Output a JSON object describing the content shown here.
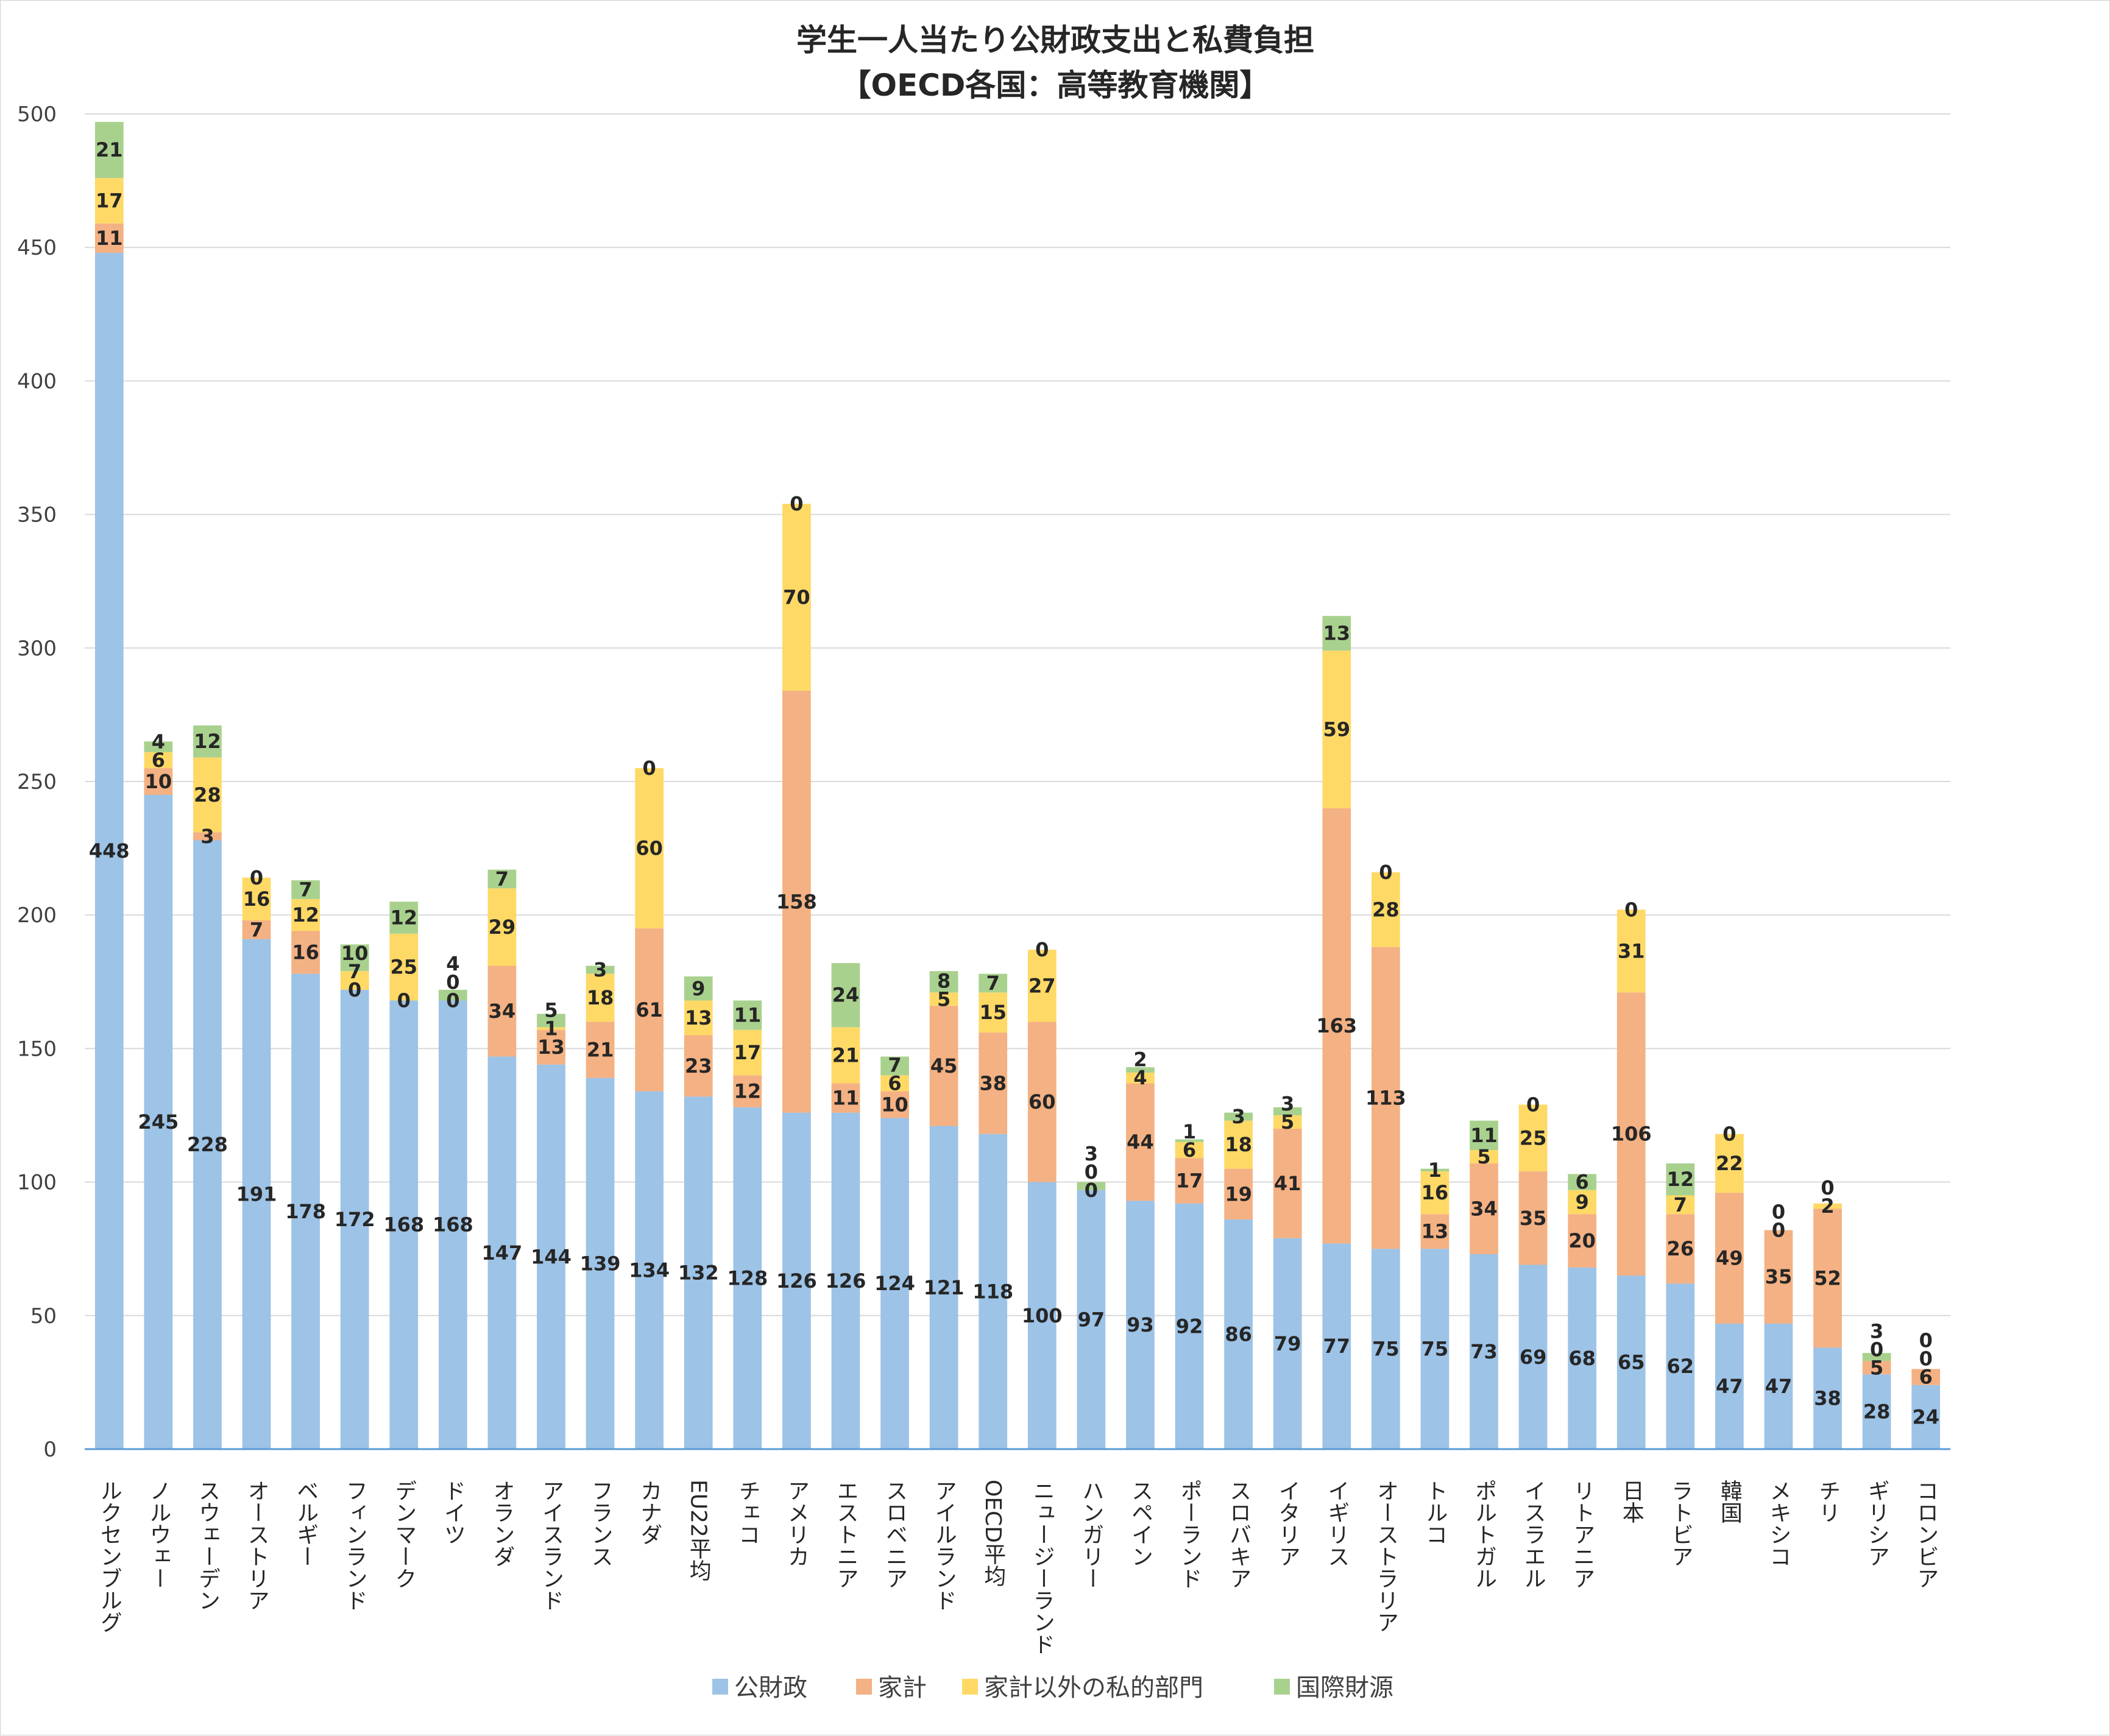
{
  "chart_data": {
    "type": "bar",
    "stacked": true,
    "title": "学生一人当たり公財政支出と私費負担",
    "subtitle": "【OECD各国：高等教育機関】",
    "xlabel": "",
    "ylabel": "",
    "ylim": [
      0,
      500
    ],
    "yticks": [
      0,
      50,
      100,
      150,
      200,
      250,
      300,
      350,
      400,
      450,
      500
    ],
    "grid": true,
    "legend_position": "bottom",
    "categories": [
      "ルクセンブルグ",
      "ノルウェー",
      "スウェーデン",
      "オーストリア",
      "ベルギー",
      "フィンランド",
      "デンマーク",
      "ドイツ",
      "オランダ",
      "アイスランド",
      "フランス",
      "カナダ",
      "EU22平均",
      "チェコ",
      "アメリカ",
      "エストニア",
      "スロベニア",
      "アイルランド",
      "OECD平均",
      "ニュージーランド",
      "ハンガリー",
      "スペイン",
      "ポーランド",
      "スロバキア",
      "イタリア",
      "イギリス",
      "オーストラリア",
      "トルコ",
      "ポルトガル",
      "イスラエル",
      "リトアニア",
      "日本",
      "ラトビア",
      "韓国",
      "メキシコ",
      "チリ",
      "ギリシア",
      "コロンビア"
    ],
    "series": [
      {
        "name": "公財政",
        "color": "#9dc3e6",
        "values": [
          448,
          245,
          228,
          191,
          178,
          172,
          168,
          168,
          147,
          144,
          139,
          134,
          132,
          128,
          126,
          126,
          124,
          121,
          118,
          100,
          97,
          93,
          92,
          86,
          79,
          77,
          75,
          75,
          73,
          69,
          68,
          65,
          62,
          47,
          47,
          38,
          28,
          24
        ]
      },
      {
        "name": "家計",
        "color": "#f4b183",
        "values": [
          11,
          10,
          3,
          7,
          16,
          0,
          0,
          0,
          34,
          13,
          21,
          61,
          23,
          12,
          158,
          11,
          10,
          45,
          38,
          60,
          0,
          44,
          17,
          19,
          41,
          163,
          113,
          13,
          34,
          35,
          20,
          106,
          26,
          49,
          35,
          52,
          5,
          6
        ]
      },
      {
        "name": "家計以外の私的部門",
        "color": "#ffd966",
        "values": [
          17,
          6,
          28,
          16,
          12,
          7,
          25,
          0,
          29,
          1,
          18,
          60,
          13,
          17,
          70,
          21,
          6,
          5,
          15,
          27,
          0,
          4,
          6,
          18,
          5,
          59,
          28,
          16,
          5,
          25,
          9,
          31,
          7,
          22,
          0,
          2,
          0,
          0
        ]
      },
      {
        "name": "国際財源",
        "color": "#a9d18e",
        "values": [
          21,
          4,
          12,
          0,
          7,
          10,
          12,
          4,
          7,
          5,
          3,
          0,
          9,
          11,
          0,
          24,
          7,
          8,
          7,
          0,
          3,
          2,
          1,
          3,
          3,
          13,
          0,
          1,
          11,
          0,
          6,
          0,
          12,
          0,
          0,
          0,
          3,
          0
        ]
      }
    ]
  }
}
